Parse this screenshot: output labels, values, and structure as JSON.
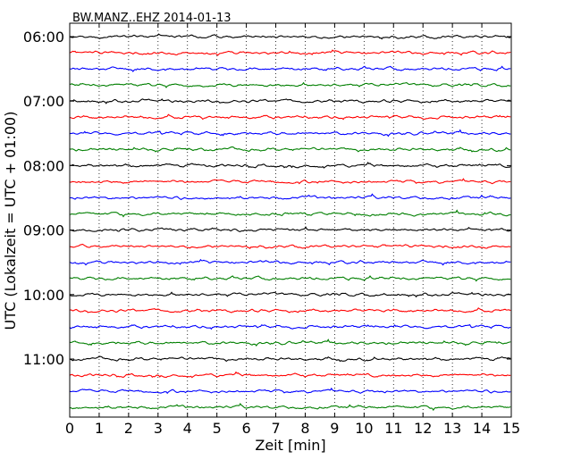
{
  "chart_data": {
    "type": "line",
    "title": "BW.MANZ..EHZ 2014-01-13",
    "xlabel": "Zeit  [min]",
    "ylabel": "UTC (Lokalzeit = UTC + 01:00)",
    "xlim": [
      0,
      15
    ],
    "x_ticks": [
      "0",
      "1",
      "2",
      "3",
      "4",
      "5",
      "6",
      "7",
      "8",
      "9",
      "10",
      "11",
      "12",
      "13",
      "14",
      "15"
    ],
    "y_tick_labels": [
      "06:00",
      "07:00",
      "08:00",
      "09:00",
      "10:00",
      "11:00"
    ],
    "row_minutes": 15,
    "rows_per_hour": 4,
    "grid": "vertical dotted lines at each minute",
    "trace_colors": [
      "#000000",
      "#ff0000",
      "#0000ff",
      "#007f00"
    ],
    "rows": [
      {
        "start": "06:00"
      },
      {
        "start": "06:15"
      },
      {
        "start": "06:30"
      },
      {
        "start": "06:45"
      },
      {
        "start": "07:00"
      },
      {
        "start": "07:15"
      },
      {
        "start": "07:30"
      },
      {
        "start": "07:45"
      },
      {
        "start": "08:00"
      },
      {
        "start": "08:15"
      },
      {
        "start": "08:30"
      },
      {
        "start": "08:45"
      },
      {
        "start": "09:00"
      },
      {
        "start": "09:15"
      },
      {
        "start": "09:30"
      },
      {
        "start": "09:45"
      },
      {
        "start": "10:00"
      },
      {
        "start": "10:15"
      },
      {
        "start": "10:30"
      },
      {
        "start": "10:45"
      },
      {
        "start": "11:00"
      },
      {
        "start": "11:15"
      },
      {
        "start": "11:30"
      },
      {
        "start": "11:45"
      }
    ]
  }
}
